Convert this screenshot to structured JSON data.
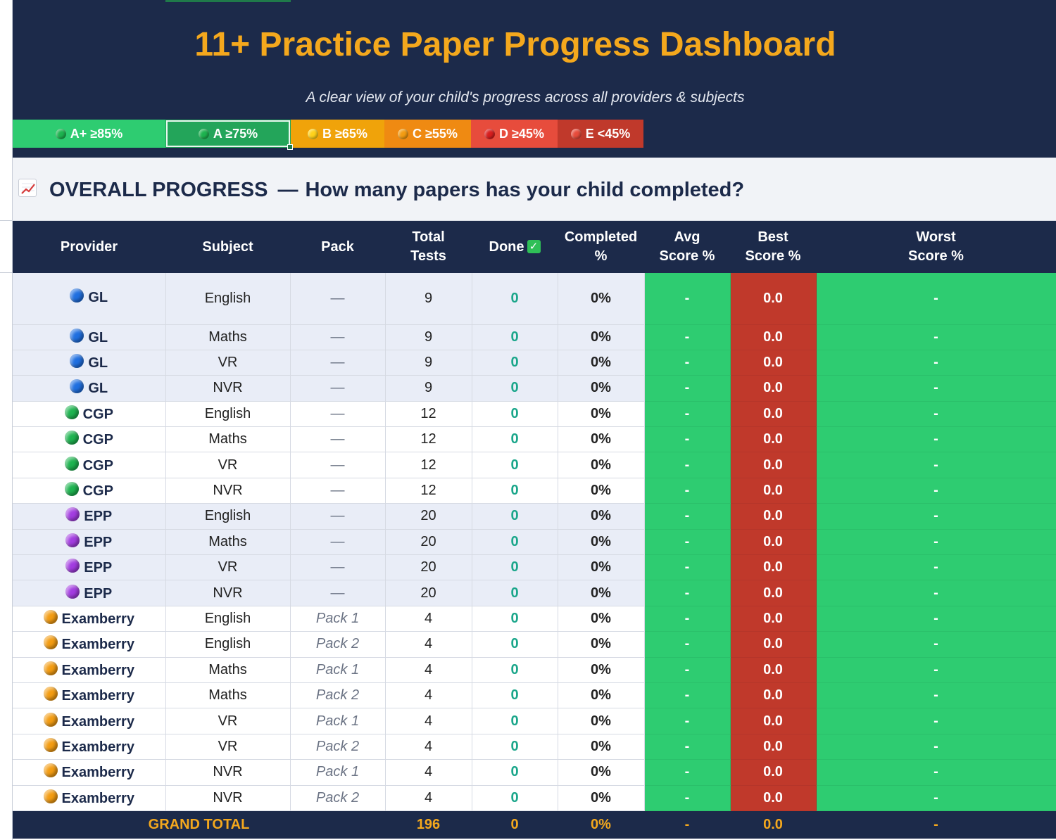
{
  "header": {
    "title": "11+ Practice Paper Progress Dashboard",
    "subtitle": "A clear view of your child's progress across all providers & subjects"
  },
  "legend": [
    {
      "label": "A+ ≥85%",
      "bg": "#2ecc71",
      "dot": "#1db34f"
    },
    {
      "label": "A ≥75%",
      "bg": "#23a55a",
      "dot": "#1db34f"
    },
    {
      "label": "B ≥65%",
      "bg": "#f0a30a",
      "dot": "#ffd21a"
    },
    {
      "label": "C ≥55%",
      "bg": "#ef8a12",
      "dot": "#f39c12"
    },
    {
      "label": "D ≥45%",
      "bg": "#e74c3c",
      "dot": "#d81e1e"
    },
    {
      "label": "E <45%",
      "bg": "#c0392b",
      "dot": "#e74c3c"
    }
  ],
  "section": {
    "icon": "chart-increasing-icon",
    "title": "OVERALL PROGRESS",
    "dash": "—",
    "question": "How many papers has your child completed?"
  },
  "table": {
    "headers": {
      "provider": "Provider",
      "subject": "Subject",
      "pack": "Pack",
      "total_1": "Total",
      "total_2": "Tests",
      "done": "Done",
      "done_icon": "✓",
      "completed_1": "Completed",
      "completed_2": "%",
      "avg_1": "Avg",
      "avg_2": "Score %",
      "best_1": "Best",
      "best_2": "Score %",
      "worst_1": "Worst",
      "worst_2": "Score %"
    },
    "provider_colors": {
      "GL": "#1f6fe0",
      "CGP": "#1db34f",
      "EPP": "#a23ce0",
      "Examberry": "#f39c12"
    },
    "rows": [
      {
        "provider": "GL",
        "subject": "English",
        "pack": "—",
        "total": "9",
        "done": "0",
        "completed": "0%",
        "avg": "-",
        "best": "0.0",
        "worst": "-"
      },
      {
        "provider": "GL",
        "subject": "Maths",
        "pack": "—",
        "total": "9",
        "done": "0",
        "completed": "0%",
        "avg": "-",
        "best": "0.0",
        "worst": "-"
      },
      {
        "provider": "GL",
        "subject": "VR",
        "pack": "—",
        "total": "9",
        "done": "0",
        "completed": "0%",
        "avg": "-",
        "best": "0.0",
        "worst": "-"
      },
      {
        "provider": "GL",
        "subject": "NVR",
        "pack": "—",
        "total": "9",
        "done": "0",
        "completed": "0%",
        "avg": "-",
        "best": "0.0",
        "worst": "-"
      },
      {
        "provider": "CGP",
        "subject": "English",
        "pack": "—",
        "total": "12",
        "done": "0",
        "completed": "0%",
        "avg": "-",
        "best": "0.0",
        "worst": "-"
      },
      {
        "provider": "CGP",
        "subject": "Maths",
        "pack": "—",
        "total": "12",
        "done": "0",
        "completed": "0%",
        "avg": "-",
        "best": "0.0",
        "worst": "-"
      },
      {
        "provider": "CGP",
        "subject": "VR",
        "pack": "—",
        "total": "12",
        "done": "0",
        "completed": "0%",
        "avg": "-",
        "best": "0.0",
        "worst": "-"
      },
      {
        "provider": "CGP",
        "subject": "NVR",
        "pack": "—",
        "total": "12",
        "done": "0",
        "completed": "0%",
        "avg": "-",
        "best": "0.0",
        "worst": "-"
      },
      {
        "provider": "EPP",
        "subject": "English",
        "pack": "—",
        "total": "20",
        "done": "0",
        "completed": "0%",
        "avg": "-",
        "best": "0.0",
        "worst": "-"
      },
      {
        "provider": "EPP",
        "subject": "Maths",
        "pack": "—",
        "total": "20",
        "done": "0",
        "completed": "0%",
        "avg": "-",
        "best": "0.0",
        "worst": "-"
      },
      {
        "provider": "EPP",
        "subject": "VR",
        "pack": "—",
        "total": "20",
        "done": "0",
        "completed": "0%",
        "avg": "-",
        "best": "0.0",
        "worst": "-"
      },
      {
        "provider": "EPP",
        "subject": "NVR",
        "pack": "—",
        "total": "20",
        "done": "0",
        "completed": "0%",
        "avg": "-",
        "best": "0.0",
        "worst": "-"
      },
      {
        "provider": "Examberry",
        "subject": "English",
        "pack": "Pack 1",
        "total": "4",
        "done": "0",
        "completed": "0%",
        "avg": "-",
        "best": "0.0",
        "worst": "-"
      },
      {
        "provider": "Examberry",
        "subject": "English",
        "pack": "Pack 2",
        "total": "4",
        "done": "0",
        "completed": "0%",
        "avg": "-",
        "best": "0.0",
        "worst": "-"
      },
      {
        "provider": "Examberry",
        "subject": "Maths",
        "pack": "Pack 1",
        "total": "4",
        "done": "0",
        "completed": "0%",
        "avg": "-",
        "best": "0.0",
        "worst": "-"
      },
      {
        "provider": "Examberry",
        "subject": "Maths",
        "pack": "Pack 2",
        "total": "4",
        "done": "0",
        "completed": "0%",
        "avg": "-",
        "best": "0.0",
        "worst": "-"
      },
      {
        "provider": "Examberry",
        "subject": "VR",
        "pack": "Pack 1",
        "total": "4",
        "done": "0",
        "completed": "0%",
        "avg": "-",
        "best": "0.0",
        "worst": "-"
      },
      {
        "provider": "Examberry",
        "subject": "VR",
        "pack": "Pack 2",
        "total": "4",
        "done": "0",
        "completed": "0%",
        "avg": "-",
        "best": "0.0",
        "worst": "-"
      },
      {
        "provider": "Examberry",
        "subject": "NVR",
        "pack": "Pack 1",
        "total": "4",
        "done": "0",
        "completed": "0%",
        "avg": "-",
        "best": "0.0",
        "worst": "-"
      },
      {
        "provider": "Examberry",
        "subject": "NVR",
        "pack": "Pack 2",
        "total": "4",
        "done": "0",
        "completed": "0%",
        "avg": "-",
        "best": "0.0",
        "worst": "-"
      }
    ],
    "grand_total": {
      "label": "GRAND TOTAL",
      "total": "196",
      "done": "0",
      "completed": "0%",
      "avg": "-",
      "best": "0.0",
      "worst": "-"
    }
  }
}
